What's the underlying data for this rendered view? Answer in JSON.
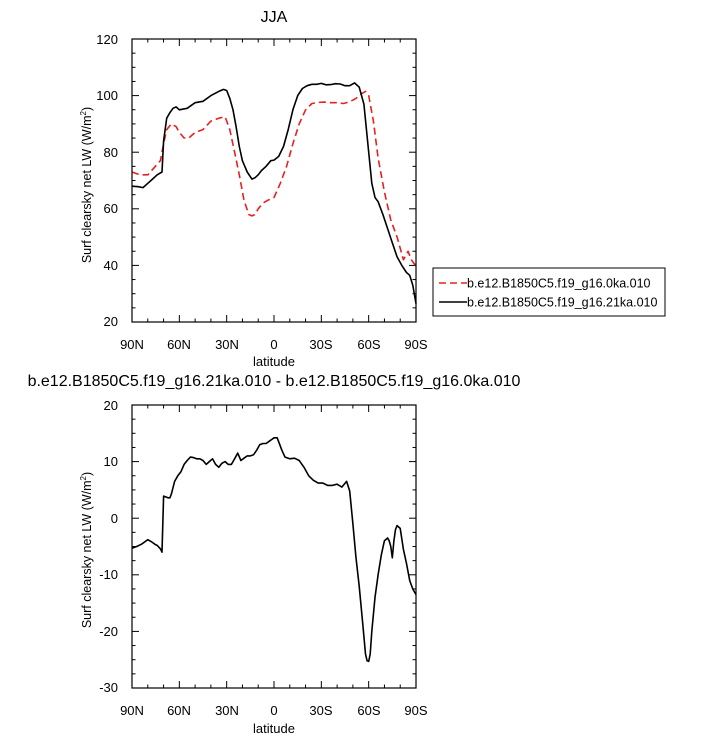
{
  "chart_data": [
    {
      "type": "line",
      "title": "JJA",
      "xlabel": "latitude",
      "ylabel": "Surf clearsky net LW (W/m",
      "ylabel_sup": "2",
      "ylabel_close": ")",
      "xlim": [
        90,
        -90
      ],
      "ylim": [
        20,
        120
      ],
      "x_ticks": [
        90,
        60,
        30,
        0,
        -30,
        -60,
        -90
      ],
      "x_tick_labels": [
        "90N",
        "60N",
        "30N",
        "0",
        "30S",
        "60S",
        "90S"
      ],
      "y_ticks": [
        20,
        40,
        60,
        80,
        100,
        120
      ],
      "y_tick_labels": [
        "20",
        "40",
        "60",
        "80",
        "100",
        "120"
      ],
      "legend_position": "right",
      "series": [
        {
          "name": "b.e12.B1850C5.f19_g16.0ka.010",
          "color": "#e8201e",
          "dash": "dashed",
          "x": [
            90,
            85,
            80,
            76,
            72,
            70,
            68,
            65,
            62,
            60,
            57,
            54,
            50,
            45,
            40,
            35,
            31,
            28,
            25,
            22,
            19,
            16,
            14,
            12,
            10,
            7,
            4,
            0,
            -4,
            -8,
            -12,
            -16,
            -20,
            -24,
            -28,
            -32,
            -36,
            -40,
            -44,
            -48,
            -52,
            -55,
            -58,
            -60,
            -63,
            -66,
            -70,
            -74,
            -78,
            -82,
            -85,
            -87,
            -89,
            -90
          ],
          "y": [
            73,
            72,
            72,
            74.5,
            77,
            83,
            88,
            90,
            89,
            87,
            85,
            85,
            87,
            88,
            91,
            92,
            92.5,
            88,
            80,
            72,
            63,
            58,
            57.5,
            58,
            60,
            62,
            63,
            64,
            69,
            75,
            83,
            90,
            95,
            97.2,
            97.6,
            97.7,
            97.5,
            97.5,
            97.2,
            97.8,
            99,
            100.5,
            101.5,
            100,
            91,
            78,
            66,
            56,
            50,
            42,
            45,
            42,
            40.5,
            40
          ]
        },
        {
          "name": "b.e12.B1850C5.f19_g16.21ka.010",
          "color": "#000000",
          "dash": "solid",
          "x": [
            90,
            86,
            83,
            80,
            77,
            74,
            71,
            70,
            68,
            66,
            64,
            62,
            60,
            55,
            50,
            45,
            40,
            35,
            32,
            30,
            28,
            26,
            24,
            22,
            20,
            17,
            14,
            12,
            10,
            8,
            5,
            2,
            0,
            -3,
            -6,
            -9,
            -12,
            -15,
            -18,
            -21,
            -24,
            -27,
            -30,
            -33,
            -36,
            -39,
            -42,
            -45,
            -48,
            -51,
            -54,
            -57,
            -60,
            -62,
            -64,
            -66,
            -69,
            -72,
            -75,
            -78,
            -81,
            -84,
            -86,
            -88,
            -90
          ],
          "y": [
            68,
            67.8,
            67.5,
            69,
            70.5,
            72,
            73,
            84,
            92,
            94,
            95.5,
            96,
            95,
            95.5,
            97.5,
            98,
            100,
            101.5,
            102.2,
            101.8,
            99,
            95,
            89,
            82,
            77,
            73,
            70.5,
            71,
            72,
            73.5,
            75,
            77,
            77.2,
            78.5,
            82,
            88,
            95,
            100,
            102.5,
            103.5,
            104,
            104,
            104.3,
            103.8,
            103.9,
            104.2,
            104.1,
            103.5,
            103.5,
            104.5,
            103,
            97,
            80,
            69,
            64,
            62.5,
            58,
            53,
            48,
            43,
            40,
            37.5,
            36.5,
            33,
            26.5
          ]
        }
      ]
    },
    {
      "type": "line",
      "title": "b.e12.B1850C5.f19_g16.21ka.010 - b.e12.B1850C5.f19_g16.0ka.010",
      "xlabel": "latitude",
      "ylabel": "Surf clearsky net LW (W/m",
      "ylabel_sup": "2",
      "ylabel_close": ")",
      "xlim": [
        90,
        -90
      ],
      "ylim": [
        -30,
        20
      ],
      "x_ticks": [
        90,
        60,
        30,
        0,
        -30,
        -60,
        -90
      ],
      "x_tick_labels": [
        "90N",
        "60N",
        "30N",
        "0",
        "30S",
        "60S",
        "90S"
      ],
      "y_ticks": [
        -30,
        -20,
        -10,
        0,
        10,
        20
      ],
      "y_tick_labels": [
        "-30",
        "-20",
        "-10",
        "0",
        "10",
        "20"
      ],
      "series": [
        {
          "name": "b.e12.B1850C5.f19_g16.21ka.010 - b.e12.B1850C5.f19_g16.0ka.010",
          "color": "#000000",
          "dash": "solid",
          "x": [
            90,
            87,
            84,
            82,
            80,
            78,
            77,
            75,
            74,
            72,
            71,
            70,
            68,
            67,
            66,
            65,
            63,
            61,
            59,
            57,
            55,
            53,
            51,
            49,
            47,
            45,
            43,
            41,
            39,
            37,
            35,
            33,
            31,
            29,
            27,
            25,
            23,
            21,
            19,
            17,
            15,
            13,
            11,
            9,
            7,
            5,
            3,
            1,
            0,
            -2,
            -3,
            -5,
            -7,
            -10,
            -13,
            -16,
            -19,
            -22,
            -25,
            -28,
            -31,
            -34,
            -37,
            -40,
            -43,
            -46,
            -48,
            -50,
            -52,
            -54,
            -56,
            -58,
            -59,
            -60,
            -61,
            -62,
            -64,
            -66,
            -68,
            -70,
            -72,
            -73,
            -74,
            -75,
            -76,
            -77,
            -78,
            -80,
            -82,
            -84,
            -86,
            -88,
            -90
          ],
          "y": [
            -5.3,
            -5,
            -4.6,
            -4.2,
            -3.8,
            -4.1,
            -4.3,
            -4.7,
            -4.8,
            -5.4,
            -6,
            3.9,
            3.7,
            3.6,
            3.6,
            4.3,
            6.5,
            7.5,
            8.2,
            9.5,
            10.2,
            10.8,
            10.7,
            10.5,
            10.5,
            10.2,
            9.5,
            10,
            10.5,
            9.5,
            9,
            9.7,
            10,
            9.5,
            9.5,
            10.5,
            11.5,
            10.2,
            10.6,
            11,
            11,
            11.2,
            12,
            13,
            13.2,
            13.2,
            13.6,
            14,
            14.2,
            14.2,
            13.5,
            12,
            10.8,
            10.5,
            10.6,
            10.2,
            9,
            7.5,
            6.7,
            6.2,
            6.2,
            5.8,
            5.8,
            6,
            5.5,
            6.5,
            4.8,
            -1,
            -7,
            -12,
            -18,
            -24,
            -25.2,
            -25.3,
            -24,
            -20,
            -14,
            -10,
            -6.5,
            -4,
            -3.5,
            -4,
            -5,
            -7,
            -4,
            -2,
            -1.3,
            -1.8,
            -5.5,
            -8,
            -11,
            -12.5,
            -13.5
          ]
        }
      ]
    }
  ]
}
